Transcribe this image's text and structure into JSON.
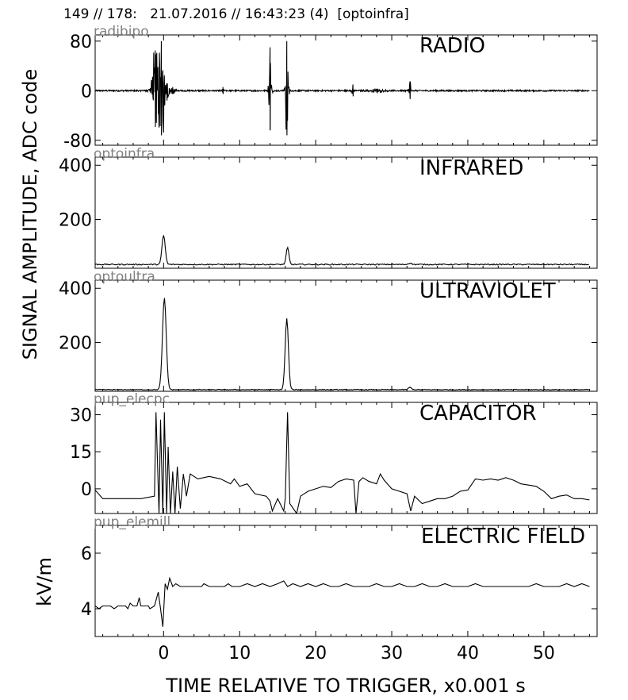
{
  "header": "149 // 178:   21.07.2016 // 16:43:23 (4)  [optoinfra]",
  "ylabel_main": "SIGNAL AMPLITUDE,  ADC code",
  "ylabel_efield": "kV/m",
  "xlabel": "TIME RELATIVE TO TRIGGER,   x0.001 s",
  "x_ticks": [
    0,
    10,
    20,
    30,
    40,
    50
  ],
  "x_range": [
    -9,
    57
  ],
  "colors": {
    "trace": "#000000",
    "channel_label": "#808080"
  },
  "chart_data": [
    {
      "type": "line",
      "channel": "radibipo",
      "title": "RADIO",
      "ylim": [
        -88,
        90
      ],
      "y_ticks": [
        80,
        0,
        -80
      ],
      "y_tick_labels": [
        "80",
        "0",
        "-80"
      ],
      "baseline": 0,
      "events": [
        {
          "t": -1.1,
          "amp": 65,
          "width": 0.7
        },
        {
          "t": -0.3,
          "amp": 80,
          "width": 0.9
        },
        {
          "t": 1.2,
          "amp": 6,
          "width": 0.6
        },
        {
          "t": 7.8,
          "amp": 6,
          "width": 0.2
        },
        {
          "t": 14.0,
          "amp": 70,
          "width": 0.25
        },
        {
          "t": 16.2,
          "amp": 80,
          "width": 0.3
        },
        {
          "t": 24.9,
          "amp": 10,
          "width": 0.25
        },
        {
          "t": 28.0,
          "amp": 3,
          "width": 1.5
        },
        {
          "t": 32.4,
          "amp": 15,
          "width": 0.25
        }
      ],
      "noise": 1.2
    },
    {
      "type": "line",
      "channel": "optoinfra",
      "title": "INFRARED",
      "ylim": [
        20,
        430
      ],
      "y_ticks": [
        400,
        200
      ],
      "y_tick_labels": [
        "400",
        "200"
      ],
      "baseline": 34,
      "peaks": [
        {
          "t": 0.0,
          "amp": 108,
          "width": 0.3
        },
        {
          "t": 16.3,
          "amp": 62,
          "width": 0.25
        },
        {
          "t": 32.4,
          "amp": 5,
          "width": 0.3
        }
      ],
      "noise": 2
    },
    {
      "type": "line",
      "channel": "optoultra",
      "title": "ULTRAVIOLET",
      "ylim": [
        20,
        430
      ],
      "y_ticks": [
        400,
        200
      ],
      "y_tick_labels": [
        "400",
        "200"
      ],
      "baseline": 26,
      "peaks": [
        {
          "t": 0.1,
          "amp": 338,
          "width": 0.35
        },
        {
          "t": 16.2,
          "amp": 262,
          "width": 0.3
        },
        {
          "t": 32.4,
          "amp": 8,
          "width": 0.3
        }
      ],
      "noise": 1.5
    },
    {
      "type": "line",
      "channel": "pup_elecpc",
      "title": "CAPACITOR",
      "ylim": [
        -10,
        35
      ],
      "y_ticks": [
        30,
        15,
        0
      ],
      "y_tick_labels": [
        "30",
        "15",
        "0"
      ],
      "points": [
        [
          -9,
          -0.5
        ],
        [
          -8,
          -4
        ],
        [
          -6,
          -4
        ],
        [
          -3,
          -4
        ],
        [
          -1.2,
          -3
        ],
        [
          -1,
          31
        ],
        [
          -0.6,
          -10
        ],
        [
          -0.4,
          28
        ],
        [
          -0.1,
          -10
        ],
        [
          0.1,
          31
        ],
        [
          0.4,
          -10
        ],
        [
          0.6,
          17
        ],
        [
          0.9,
          -10
        ],
        [
          1.2,
          7
        ],
        [
          1.5,
          -10
        ],
        [
          1.8,
          9
        ],
        [
          2.2,
          -8
        ],
        [
          2.6,
          6
        ],
        [
          3.0,
          -3
        ],
        [
          3.5,
          6
        ],
        [
          4.5,
          4
        ],
        [
          6,
          5
        ],
        [
          7.5,
          4
        ],
        [
          8.8,
          2
        ],
        [
          9.3,
          4
        ],
        [
          10,
          1
        ],
        [
          11,
          2
        ],
        [
          12,
          -2
        ],
        [
          13.5,
          -3
        ],
        [
          14.0,
          -5
        ],
        [
          14.3,
          -9
        ],
        [
          15.0,
          -4
        ],
        [
          15.8,
          -9
        ],
        [
          16.0,
          -4
        ],
        [
          16.3,
          31
        ],
        [
          16.6,
          -6
        ],
        [
          17.5,
          -10
        ],
        [
          18,
          -3
        ],
        [
          19,
          -1
        ],
        [
          20,
          0
        ],
        [
          21,
          1
        ],
        [
          22,
          0.5
        ],
        [
          23,
          3
        ],
        [
          24,
          4
        ],
        [
          25,
          3.5
        ],
        [
          25.3,
          -10
        ],
        [
          25.7,
          3
        ],
        [
          26.2,
          4.5
        ],
        [
          27,
          3
        ],
        [
          28,
          2
        ],
        [
          28.5,
          6
        ],
        [
          29,
          3.5
        ],
        [
          30,
          0
        ],
        [
          31,
          -1
        ],
        [
          32,
          -2
        ],
        [
          32.5,
          -9
        ],
        [
          33,
          -3
        ],
        [
          34,
          -6
        ],
        [
          35,
          -5
        ],
        [
          36,
          -4
        ],
        [
          37,
          -4
        ],
        [
          38,
          -3
        ],
        [
          39,
          -1
        ],
        [
          40,
          -0.5
        ],
        [
          41,
          4
        ],
        [
          42,
          3.5
        ],
        [
          43,
          4
        ],
        [
          44,
          3.5
        ],
        [
          45,
          4.5
        ],
        [
          46,
          3.5
        ],
        [
          47,
          2
        ],
        [
          48,
          1.5
        ],
        [
          49,
          1
        ],
        [
          50,
          -1
        ],
        [
          51,
          -4
        ],
        [
          52,
          -3
        ],
        [
          53,
          -2.5
        ],
        [
          54,
          -4
        ],
        [
          55,
          -4
        ],
        [
          56,
          -4.5
        ]
      ]
    },
    {
      "type": "line",
      "channel": "pup_elemill",
      "title": "ELECTRIC FIELD",
      "ylim": [
        3,
        7
      ],
      "y_ticks": [
        6,
        4
      ],
      "y_tick_labels": [
        "6",
        "4"
      ],
      "points": [
        [
          -9,
          4.1
        ],
        [
          -8.5,
          4.0
        ],
        [
          -8,
          4.1
        ],
        [
          -7,
          4.1
        ],
        [
          -6.5,
          4.0
        ],
        [
          -6,
          4.1
        ],
        [
          -5,
          4.1
        ],
        [
          -4.7,
          4.0
        ],
        [
          -4.4,
          4.2
        ],
        [
          -4,
          4.1
        ],
        [
          -3.5,
          4.1
        ],
        [
          -3.2,
          4.4
        ],
        [
          -3,
          4.1
        ],
        [
          -2,
          4.1
        ],
        [
          -1.8,
          4.0
        ],
        [
          -1.2,
          4.1
        ],
        [
          -0.7,
          4.6
        ],
        [
          -0.4,
          4.0
        ],
        [
          -0.1,
          3.35
        ],
        [
          0.2,
          4.9
        ],
        [
          0.5,
          4.7
        ],
        [
          0.8,
          5.1
        ],
        [
          1.2,
          4.8
        ],
        [
          1.6,
          4.9
        ],
        [
          2.2,
          4.8
        ],
        [
          3,
          4.8
        ],
        [
          4,
          4.8
        ],
        [
          5,
          4.8
        ],
        [
          5.3,
          4.9
        ],
        [
          6,
          4.8
        ],
        [
          7,
          4.8
        ],
        [
          8,
          4.8
        ],
        [
          8.5,
          4.9
        ],
        [
          9,
          4.8
        ],
        [
          10,
          4.8
        ],
        [
          11,
          4.9
        ],
        [
          12,
          4.8
        ],
        [
          13,
          4.9
        ],
        [
          14,
          4.8
        ],
        [
          15,
          4.9
        ],
        [
          15.8,
          5.0
        ],
        [
          16.3,
          4.8
        ],
        [
          17,
          4.9
        ],
        [
          18,
          4.8
        ],
        [
          19,
          4.9
        ],
        [
          20,
          4.8
        ],
        [
          21,
          4.9
        ],
        [
          22,
          4.8
        ],
        [
          23,
          4.8
        ],
        [
          24,
          4.9
        ],
        [
          25,
          4.8
        ],
        [
          26,
          4.8
        ],
        [
          27,
          4.8
        ],
        [
          28,
          4.9
        ],
        [
          29,
          4.8
        ],
        [
          30,
          4.8
        ],
        [
          31,
          4.9
        ],
        [
          32,
          4.8
        ],
        [
          33,
          4.8
        ],
        [
          34,
          4.9
        ],
        [
          35,
          4.8
        ],
        [
          36,
          4.8
        ],
        [
          37,
          4.9
        ],
        [
          38,
          4.8
        ],
        [
          39,
          4.8
        ],
        [
          40,
          4.8
        ],
        [
          41,
          4.9
        ],
        [
          42,
          4.8
        ],
        [
          43,
          4.8
        ],
        [
          44,
          4.8
        ],
        [
          45,
          4.8
        ],
        [
          46,
          4.8
        ],
        [
          47,
          4.8
        ],
        [
          48,
          4.8
        ],
        [
          49,
          4.9
        ],
        [
          50,
          4.8
        ],
        [
          51,
          4.8
        ],
        [
          52,
          4.8
        ],
        [
          53,
          4.9
        ],
        [
          54,
          4.8
        ],
        [
          55,
          4.9
        ],
        [
          56,
          4.8
        ]
      ]
    }
  ]
}
